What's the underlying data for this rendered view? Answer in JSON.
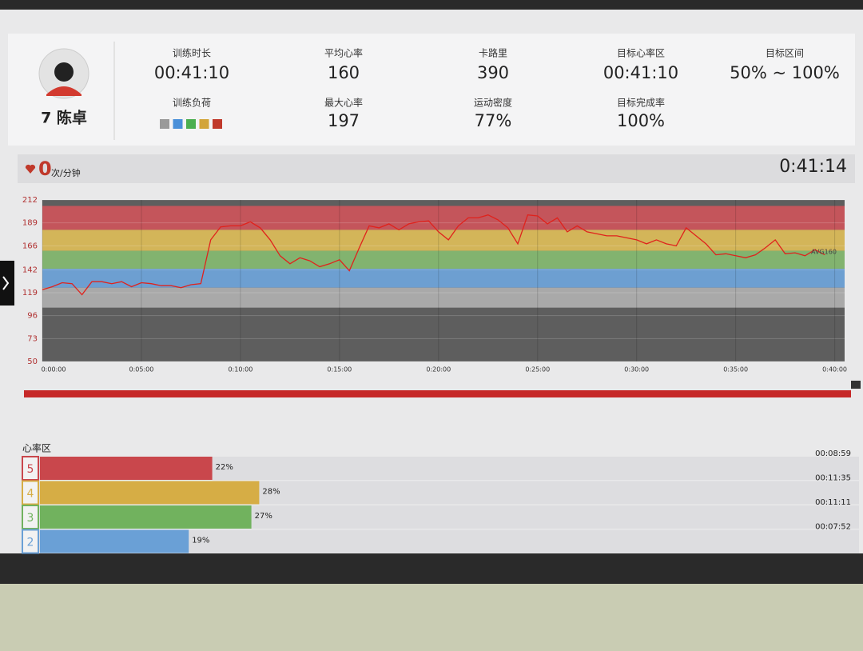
{
  "profile": {
    "name": "7 陈卓"
  },
  "stats_top": [
    {
      "label": "训练时长",
      "value": "00:41:10"
    },
    {
      "label": "平均心率",
      "value": 160
    },
    {
      "label": "卡路里",
      "value": 390
    },
    {
      "label": "目标心率区",
      "value": "00:41:10"
    },
    {
      "label": "目标区间",
      "value": "50% ~ 100%"
    }
  ],
  "stats_bottom": [
    {
      "label": "训练负荷",
      "colors": [
        "#9a9a9a",
        "#4a90d9",
        "#4caf50",
        "#d2a53a",
        "#c0392b"
      ]
    },
    {
      "label": "最大心率",
      "value": 197
    },
    {
      "label": "运动密度",
      "value": "77%"
    },
    {
      "label": "目标完成率",
      "value": "100%"
    }
  ],
  "live": {
    "heart_rate": 0,
    "unit": "次/分钟",
    "elapsed": "0:41:14"
  },
  "chart_data": {
    "type": "line",
    "ylim": [
      50,
      212
    ],
    "yticks": [
      50,
      73,
      96,
      119,
      142,
      166,
      189,
      212
    ],
    "xlim": [
      0,
      40.5
    ],
    "xticks": [
      {
        "value": 0,
        "label": "0:00:00"
      },
      {
        "value": 5,
        "label": "0:05:00"
      },
      {
        "value": 10,
        "label": "0:10:00"
      },
      {
        "value": 15,
        "label": "0:15:00"
      },
      {
        "value": 20,
        "label": "0:20:00"
      },
      {
        "value": 25,
        "label": "0:25:00"
      },
      {
        "value": 30,
        "label": "0:30:00"
      },
      {
        "value": 35,
        "label": "0:35:00"
      },
      {
        "value": 40,
        "label": "0:40:00"
      }
    ],
    "bands": [
      {
        "range": [
          182,
          206
        ],
        "color": "#c4555b"
      },
      {
        "range": [
          161,
          182
        ],
        "color": "#d3b559"
      },
      {
        "range": [
          143,
          161
        ],
        "color": "#82b36f"
      },
      {
        "range": [
          124,
          143
        ],
        "color": "#6d9fd1"
      },
      {
        "range": [
          104,
          124
        ],
        "color": "#a9a9a9"
      }
    ],
    "annotation": "AVG160",
    "annotation_value": 160,
    "grid": true,
    "series": [
      {
        "color": "#e0221c",
        "x": [
          0,
          0.5,
          1,
          1.5,
          2,
          2.5,
          3,
          3.5,
          4,
          4.5,
          5,
          5.5,
          6,
          6.5,
          7,
          7.5,
          8,
          8.5,
          9,
          9.5,
          10,
          10.5,
          11,
          11.5,
          12,
          12.5,
          13,
          13.5,
          14,
          14.5,
          15,
          15.5,
          16,
          16.5,
          17,
          17.5,
          18,
          18.5,
          19,
          19.5,
          20,
          20.5,
          21,
          21.5,
          22,
          22.5,
          23,
          23.5,
          24,
          24.5,
          25,
          25.5,
          26,
          26.5,
          27,
          27.5,
          28,
          28.5,
          29,
          29.5,
          30,
          30.5,
          31,
          31.5,
          32,
          32.5,
          33,
          33.5,
          34,
          34.5,
          35,
          35.5,
          36,
          36.5,
          37,
          37.5,
          38,
          38.5,
          39,
          39.5
        ],
        "values": [
          122,
          125,
          129,
          128,
          117,
          130,
          130,
          128,
          130,
          125,
          129,
          128,
          126,
          126,
          124,
          127,
          128,
          172,
          185,
          186,
          186,
          190,
          184,
          172,
          156,
          148,
          154,
          151,
          145,
          148,
          152,
          141,
          164,
          186,
          184,
          188,
          182,
          188,
          190,
          191,
          180,
          172,
          186,
          194,
          194,
          197,
          192,
          184,
          168,
          197,
          196,
          188,
          194,
          180,
          186,
          180,
          178,
          176,
          176,
          174,
          172,
          168,
          172,
          168,
          166,
          184,
          176,
          168,
          157,
          158,
          156,
          154,
          157,
          164,
          172,
          158,
          159,
          156,
          162,
          157
        ]
      }
    ]
  },
  "zones": {
    "title": "心率区",
    "names": [
      "5",
      "4",
      "3",
      "2"
    ],
    "values": [
      22,
      28,
      27,
      19
    ],
    "value_labels": [
      "22%",
      "28%",
      "27%",
      "19%"
    ],
    "times": [
      "00:08:59",
      "00:11:35",
      "00:11:11",
      "00:07:52"
    ],
    "colors": [
      "#c9474c",
      "#d6ad45",
      "#71b25e",
      "#6aa0d6"
    ],
    "xlim": [
      0,
      100
    ]
  }
}
